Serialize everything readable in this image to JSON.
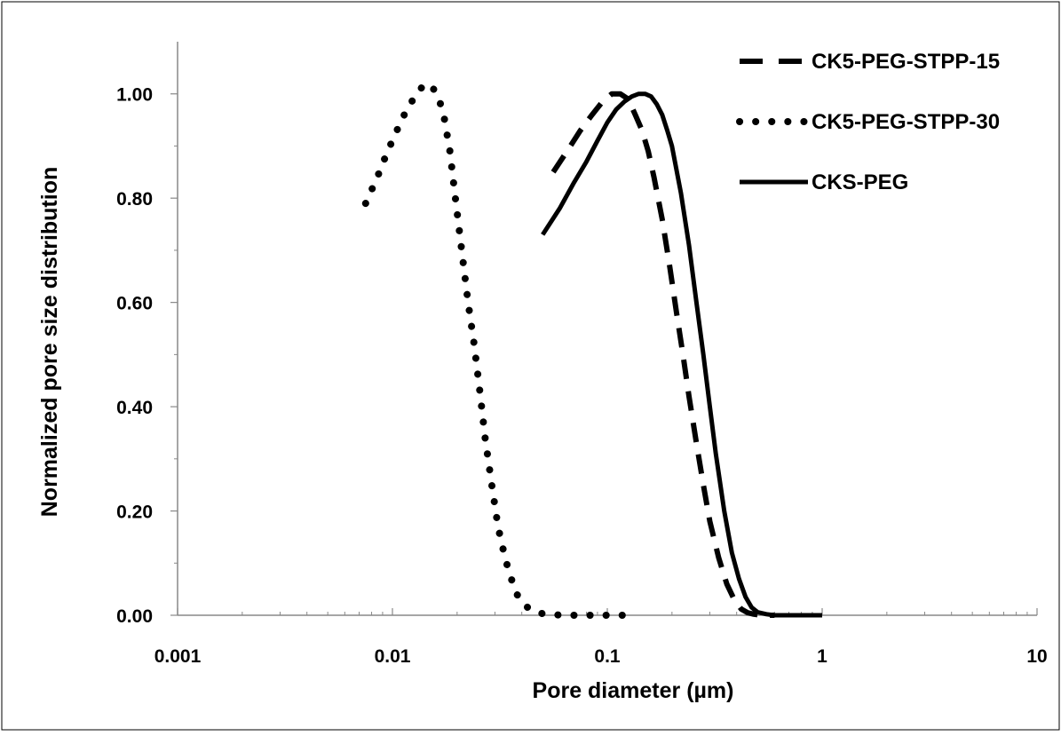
{
  "chart_data": {
    "type": "line",
    "xlabel": "Pore diameter  (µm)",
    "ylabel": "Normalized pore size distribution",
    "x_scale": "log",
    "xlim": [
      0.001,
      10
    ],
    "ylim": [
      0,
      1.1
    ],
    "x_ticks": [
      {
        "value": 0.001,
        "label": "0.001"
      },
      {
        "value": 0.01,
        "label": "0.01"
      },
      {
        "value": 0.1,
        "label": "0.1"
      },
      {
        "value": 1,
        "label": "1"
      },
      {
        "value": 10,
        "label": "10"
      }
    ],
    "y_ticks": [
      {
        "value": 0,
        "label": "0.00"
      },
      {
        "value": 0.2,
        "label": "0.20"
      },
      {
        "value": 0.4,
        "label": "0.40"
      },
      {
        "value": 0.6,
        "label": "0.60"
      },
      {
        "value": 0.8,
        "label": "0.80"
      },
      {
        "value": 1.0,
        "label": "1.00"
      }
    ],
    "grid": false,
    "legend_position": "top-right",
    "series": [
      {
        "name": "CK5-PEG-STPP-15",
        "style": "dashed",
        "color": "#000000",
        "x": [
          0.056,
          0.065,
          0.075,
          0.085,
          0.095,
          0.105,
          0.115,
          0.125,
          0.135,
          0.145,
          0.155,
          0.165,
          0.18,
          0.195,
          0.21,
          0.225,
          0.24,
          0.26,
          0.28,
          0.3,
          0.33,
          0.36,
          0.39,
          0.42,
          0.45,
          0.48,
          0.52,
          0.56,
          0.6
        ],
        "y": [
          0.85,
          0.89,
          0.93,
          0.96,
          0.985,
          1.0,
          1.0,
          0.99,
          0.96,
          0.93,
          0.89,
          0.84,
          0.76,
          0.67,
          0.58,
          0.5,
          0.42,
          0.33,
          0.25,
          0.18,
          0.11,
          0.06,
          0.03,
          0.012,
          0.005,
          0.002,
          0.0,
          0.0,
          0.0
        ]
      },
      {
        "name": "CK5-PEG-STPP-30",
        "style": "dotted",
        "color": "#000000",
        "x": [
          0.0075,
          0.0085,
          0.0095,
          0.0105,
          0.0115,
          0.0125,
          0.0135,
          0.0145,
          0.0155,
          0.0165,
          0.0175,
          0.0185,
          0.0195,
          0.021,
          0.0225,
          0.024,
          0.0255,
          0.027,
          0.029,
          0.031,
          0.033,
          0.035,
          0.038,
          0.041,
          0.045,
          0.05,
          0.055,
          0.065,
          0.075,
          0.09,
          0.11,
          0.13
        ],
        "y": [
          0.79,
          0.84,
          0.89,
          0.93,
          0.965,
          0.99,
          1.01,
          1.02,
          1.01,
          0.99,
          0.95,
          0.89,
          0.81,
          0.7,
          0.6,
          0.52,
          0.43,
          0.34,
          0.25,
          0.17,
          0.12,
          0.08,
          0.04,
          0.02,
          0.008,
          0.003,
          0.001,
          0.0,
          0.0,
          0.0,
          0.0,
          0.0
        ]
      },
      {
        "name": "CKS-PEG",
        "style": "solid",
        "color": "#000000",
        "x": [
          0.05,
          0.06,
          0.07,
          0.08,
          0.09,
          0.1,
          0.11,
          0.12,
          0.13,
          0.14,
          0.15,
          0.16,
          0.17,
          0.18,
          0.19,
          0.2,
          0.22,
          0.24,
          0.26,
          0.28,
          0.3,
          0.32,
          0.35,
          0.38,
          0.41,
          0.44,
          0.47,
          0.5,
          0.55,
          0.6,
          0.7,
          0.8,
          1.0
        ],
        "y": [
          0.73,
          0.78,
          0.83,
          0.87,
          0.91,
          0.945,
          0.97,
          0.985,
          0.995,
          1.0,
          1.0,
          0.995,
          0.98,
          0.96,
          0.93,
          0.9,
          0.81,
          0.71,
          0.6,
          0.5,
          0.4,
          0.31,
          0.2,
          0.12,
          0.07,
          0.035,
          0.015,
          0.006,
          0.002,
          0.0,
          0.0,
          0.0,
          0.0
        ]
      }
    ]
  }
}
